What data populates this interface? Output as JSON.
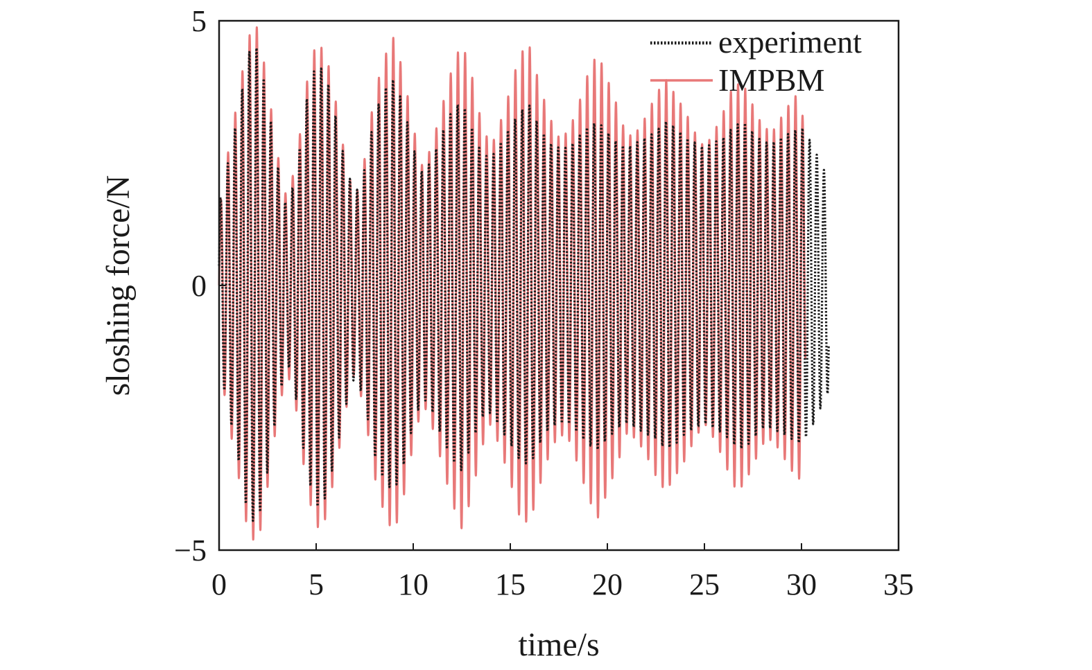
{
  "chart_data": {
    "type": "line",
    "title": "",
    "xlabel": "time/s",
    "ylabel": "sloshing force/N",
    "xlim": [
      0,
      35
    ],
    "ylim": [
      -5,
      5
    ],
    "xticks": [
      0,
      5,
      10,
      15,
      20,
      25,
      30,
      35
    ],
    "yticks": [
      -5,
      0,
      5
    ],
    "xtick_labels": [
      "0",
      "5",
      "10",
      "15",
      "20",
      "25",
      "30",
      "35"
    ],
    "ytick_labels": [
      "−5",
      "0",
      "5"
    ],
    "grid": false,
    "legend_position": "top-right",
    "oscillation_period_s": 0.37,
    "series": [
      {
        "name": "experiment",
        "style": "dotted",
        "color": "#1a1a1a",
        "t_start": 0,
        "t_end": 31.4,
        "envelope": [
          [
            0,
            1.5
          ],
          [
            0.5,
            2.4
          ],
          [
            1.0,
            3.3
          ],
          [
            1.5,
            4.4
          ],
          [
            2.0,
            4.5
          ],
          [
            2.5,
            3.5
          ],
          [
            3.0,
            2.3
          ],
          [
            3.5,
            1.4
          ],
          [
            4.0,
            2.2
          ],
          [
            4.5,
            3.5
          ],
          [
            5.0,
            4.2
          ],
          [
            5.5,
            4.0
          ],
          [
            6.0,
            3.2
          ],
          [
            6.5,
            2.3
          ],
          [
            7.0,
            1.7
          ],
          [
            7.5,
            2.2
          ],
          [
            8.0,
            3.2
          ],
          [
            8.5,
            3.7
          ],
          [
            9.0,
            3.9
          ],
          [
            9.5,
            3.4
          ],
          [
            10.0,
            2.6
          ],
          [
            10.5,
            2.1
          ],
          [
            11.0,
            2.4
          ],
          [
            11.5,
            2.9
          ],
          [
            12.0,
            3.3
          ],
          [
            12.5,
            3.5
          ],
          [
            13.0,
            3.0
          ],
          [
            13.5,
            2.5
          ],
          [
            14.0,
            2.4
          ],
          [
            14.5,
            2.7
          ],
          [
            15.0,
            3.0
          ],
          [
            15.5,
            3.3
          ],
          [
            16.0,
            3.4
          ],
          [
            16.5,
            3.0
          ],
          [
            17.0,
            2.7
          ],
          [
            17.5,
            2.6
          ],
          [
            18.0,
            2.6
          ],
          [
            18.5,
            2.8
          ],
          [
            19.0,
            3.0
          ],
          [
            19.5,
            3.1
          ],
          [
            20.0,
            2.9
          ],
          [
            20.5,
            2.7
          ],
          [
            21.0,
            2.6
          ],
          [
            21.5,
            2.7
          ],
          [
            22.0,
            2.8
          ],
          [
            22.5,
            2.9
          ],
          [
            23.0,
            3.1
          ],
          [
            23.5,
            3.0
          ],
          [
            24.0,
            2.8
          ],
          [
            24.5,
            2.7
          ],
          [
            25.0,
            2.6
          ],
          [
            25.5,
            2.7
          ],
          [
            26.0,
            2.8
          ],
          [
            26.5,
            3.0
          ],
          [
            27.0,
            3.1
          ],
          [
            27.5,
            2.9
          ],
          [
            28.0,
            2.7
          ],
          [
            28.5,
            2.7
          ],
          [
            29.0,
            2.8
          ],
          [
            29.5,
            2.9
          ],
          [
            30.0,
            3.0
          ],
          [
            30.5,
            2.7
          ],
          [
            31.0,
            2.3
          ],
          [
            31.4,
            2.0
          ]
        ]
      },
      {
        "name": "IMPBM",
        "style": "solid",
        "color": "#e87878",
        "t_start": 0,
        "t_end": 30.2,
        "envelope": [
          [
            0,
            1.4
          ],
          [
            0.5,
            2.6
          ],
          [
            1.0,
            3.6
          ],
          [
            1.5,
            4.7
          ],
          [
            2.0,
            4.9
          ],
          [
            2.5,
            3.8
          ],
          [
            3.0,
            2.5
          ],
          [
            3.5,
            1.6
          ],
          [
            4.0,
            2.4
          ],
          [
            4.5,
            3.8
          ],
          [
            5.0,
            4.6
          ],
          [
            5.5,
            4.4
          ],
          [
            6.0,
            3.5
          ],
          [
            6.5,
            2.4
          ],
          [
            7.0,
            1.6
          ],
          [
            7.5,
            2.4
          ],
          [
            8.0,
            3.6
          ],
          [
            8.5,
            4.3
          ],
          [
            9.0,
            4.7
          ],
          [
            9.5,
            4.0
          ],
          [
            10.0,
            3.0
          ],
          [
            10.5,
            2.2
          ],
          [
            11.0,
            2.7
          ],
          [
            11.5,
            3.4
          ],
          [
            12.0,
            4.1
          ],
          [
            12.5,
            4.6
          ],
          [
            13.0,
            4.0
          ],
          [
            13.5,
            3.1
          ],
          [
            14.0,
            2.6
          ],
          [
            14.5,
            3.1
          ],
          [
            15.0,
            3.7
          ],
          [
            15.5,
            4.4
          ],
          [
            16.0,
            4.5
          ],
          [
            16.5,
            3.8
          ],
          [
            17.0,
            3.2
          ],
          [
            17.5,
            2.8
          ],
          [
            18.0,
            2.9
          ],
          [
            18.5,
            3.4
          ],
          [
            19.0,
            4.0
          ],
          [
            19.5,
            4.4
          ],
          [
            20.0,
            3.9
          ],
          [
            20.5,
            3.4
          ],
          [
            21.0,
            2.8
          ],
          [
            21.5,
            2.9
          ],
          [
            22.0,
            3.2
          ],
          [
            22.5,
            3.6
          ],
          [
            23.0,
            3.9
          ],
          [
            23.5,
            3.6
          ],
          [
            24.0,
            3.3
          ],
          [
            24.5,
            2.9
          ],
          [
            25.0,
            2.6
          ],
          [
            25.5,
            2.9
          ],
          [
            26.0,
            3.3
          ],
          [
            26.5,
            3.8
          ],
          [
            27.0,
            3.8
          ],
          [
            27.5,
            3.4
          ],
          [
            28.0,
            3.0
          ],
          [
            28.5,
            2.9
          ],
          [
            29.0,
            3.2
          ],
          [
            29.5,
            3.5
          ],
          [
            30.0,
            3.7
          ],
          [
            30.2,
            2.0
          ]
        ]
      }
    ]
  }
}
